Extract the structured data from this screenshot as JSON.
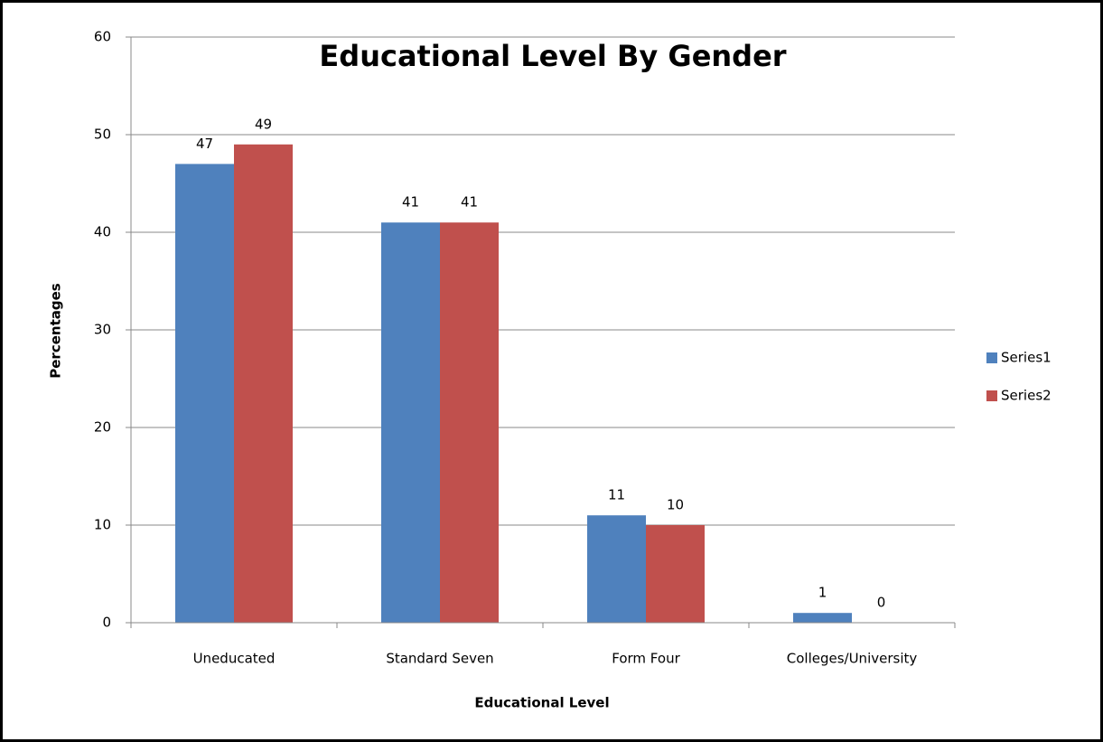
{
  "chart_data": {
    "type": "bar",
    "title": "Educational Level By Gender",
    "x_label": "Educational Level",
    "y_label": "Percentages",
    "categories": [
      "Uneducated",
      "Standard Seven",
      "Form Four",
      "Colleges/University"
    ],
    "series": [
      {
        "name": "Series1",
        "color": "#4f81bd",
        "values": [
          47,
          41,
          11,
          1
        ]
      },
      {
        "name": "Series2",
        "color": "#c0504d",
        "values": [
          49,
          41,
          10,
          0
        ]
      }
    ],
    "ylim": [
      0,
      60
    ],
    "yticks": [
      0,
      10,
      20,
      30,
      40,
      50,
      60
    ],
    "grid": true,
    "legend": "right"
  }
}
